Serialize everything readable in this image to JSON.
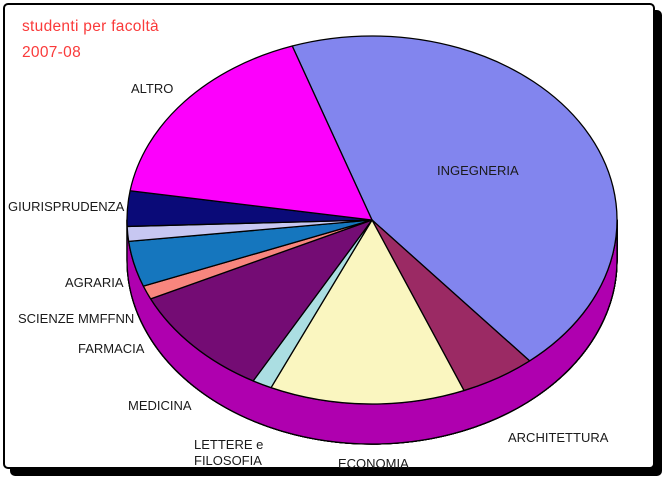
{
  "title": {
    "line1": "studenti per facoltà",
    "line2": "2007-08",
    "color": "#FA3A3A"
  },
  "chart_data": {
    "type": "pie",
    "style": "3d",
    "title": "studenti per facoltà 2007-08",
    "legend": "none",
    "start_angle_deg": 341,
    "slices": [
      {
        "label": "INGEGNERIA",
        "percent": 44.2,
        "color": "#8285EE",
        "side_color": "#47498F"
      },
      {
        "label": "ARCHITETTURA",
        "percent": 5.0,
        "color": "#9B2A64",
        "side_color": "#5E1138"
      },
      {
        "label": "ECONOMIA",
        "percent": 12.9,
        "color": "#FAF6C0",
        "side_color": "#8F8A5E"
      },
      {
        "label": "LETTERE e FILOSOFIA",
        "percent": 1.3,
        "color": "#ABDEE2",
        "side_color": "#6E9898"
      },
      {
        "label": "MEDICINA",
        "percent": 9.9,
        "color": "#740C74",
        "side_color": "#410341"
      },
      {
        "label": "FARMACIA",
        "percent": 1.2,
        "color": "#F8867E",
        "side_color": "#B25B55"
      },
      {
        "label": "SCIENZE MMFFNN",
        "percent": 4.0,
        "color": "#1576BE",
        "side_color": "#0D5564"
      },
      {
        "label": "AGRARIA",
        "percent": 1.3,
        "color": "#C7C7F2",
        "side_color": "#8C8CB8"
      },
      {
        "label": "GIURISPRUDENZA",
        "percent": 3.1,
        "color": "#0A0A78",
        "side_color": "#06064A"
      },
      {
        "label": "ALTRO",
        "percent": 17.2,
        "color": "#FC00FC",
        "side_color": "#AF00AF"
      }
    ]
  }
}
